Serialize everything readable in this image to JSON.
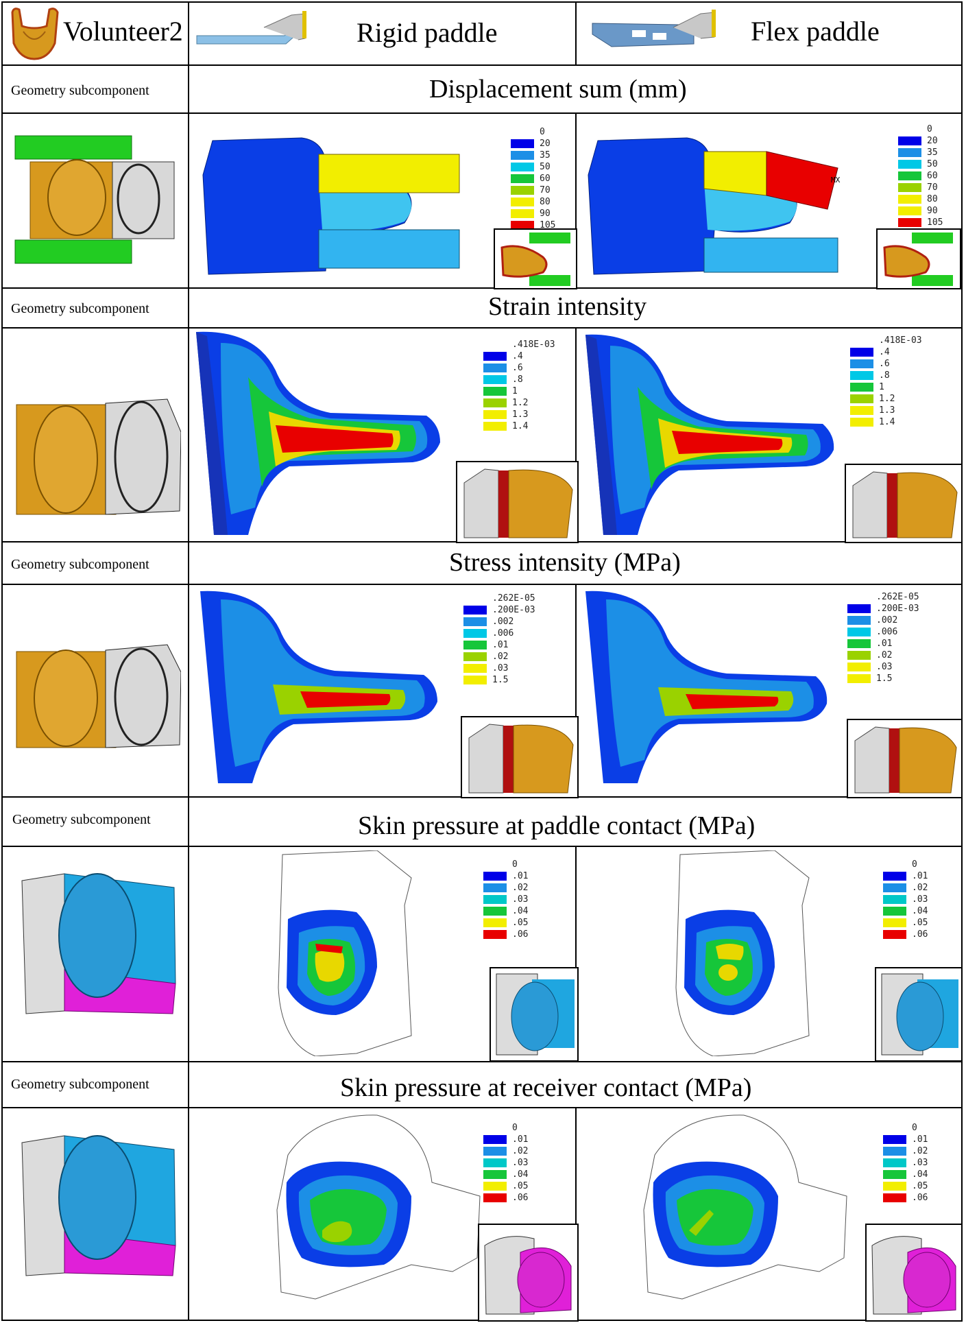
{
  "header": {
    "volunteer": "Volunteer2",
    "rigid": "Rigid paddle",
    "flex": "Flex paddle"
  },
  "rows": [
    {
      "left_label": "Geometry subcomponent",
      "title": "Displacement sum (mm)"
    },
    {
      "left_label": "Geometry subcomponent",
      "title": "Strain intensity"
    },
    {
      "left_label": "Geometry subcomponent",
      "title": "Stress intensity (MPa)"
    },
    {
      "left_label": "Geometry subcomponent",
      "title": "Skin pressure at paddle contact (MPa)"
    },
    {
      "left_label": "Geometry subcomponent",
      "title": "Skin pressure at receiver contact (MPa)"
    }
  ],
  "legends": {
    "displacement": {
      "first": "0",
      "labels": [
        "20",
        "35",
        "50",
        "60",
        "70",
        "80",
        "90",
        "105"
      ]
    },
    "strain": {
      "first": ".418E-03",
      "labels": [
        ".4",
        ".6",
        ".8",
        "1",
        "1.2",
        "1.3",
        "1.4"
      ]
    },
    "stress": {
      "first": ".262E-05",
      "labels": [
        ".200E-03",
        ".002",
        ".006",
        ".01",
        ".02",
        ".03",
        "1.5"
      ]
    },
    "pressure": {
      "first": "0",
      "labels": [
        ".01",
        ".02",
        ".03",
        ".04",
        ".05",
        ".06"
      ]
    }
  },
  "colors": {
    "c8": [
      "#0000e8",
      "#1c8fe6",
      "#00c8e6",
      "#16c63a",
      "#9ad200",
      "#f2ee00",
      "#f2ee00",
      "#e80000"
    ],
    "c7": [
      "#0000e8",
      "#1c8fe6",
      "#00c8c8",
      "#16c63a",
      "#f2ee00",
      "#e80000"
    ],
    "breast_tan": "#d7991e",
    "paddle_yellow": "#f2ee00",
    "paddle_cyan": "#32b4f0",
    "mesh_blue": "#1f86d6",
    "mesh_magenta": "#e020d8",
    "mesh_green": "#22cc22"
  },
  "annotations": {
    "mx": "MX"
  }
}
